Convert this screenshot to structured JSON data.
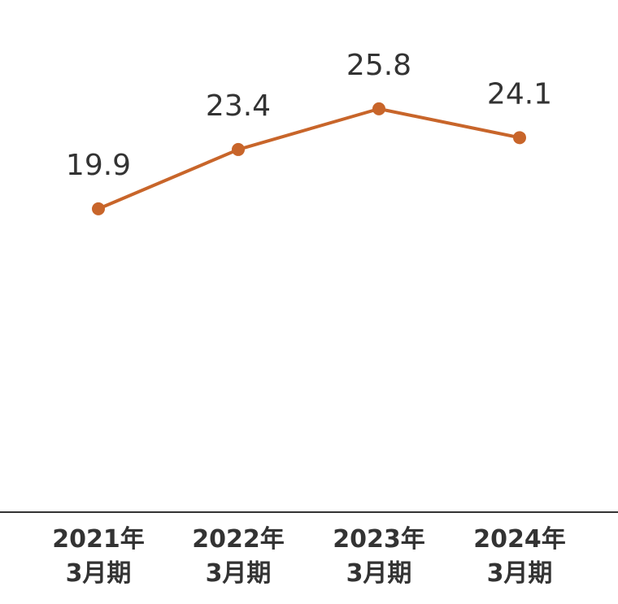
{
  "chart_data": {
    "type": "line",
    "categories": [
      [
        "2021年",
        "3月期"
      ],
      [
        "2022年",
        "3月期"
      ],
      [
        "2023年",
        "3月期"
      ],
      [
        "2024年",
        "3月期"
      ]
    ],
    "series": [
      {
        "values": [
          19.9,
          23.4,
          25.8,
          24.1
        ],
        "color": "#C8652A"
      }
    ],
    "data_labels": [
      "19.9",
      "23.4",
      "25.8",
      "24.1"
    ],
    "ylim": [
      8,
      28
    ],
    "grid": false,
    "axis_color": "#333333"
  }
}
